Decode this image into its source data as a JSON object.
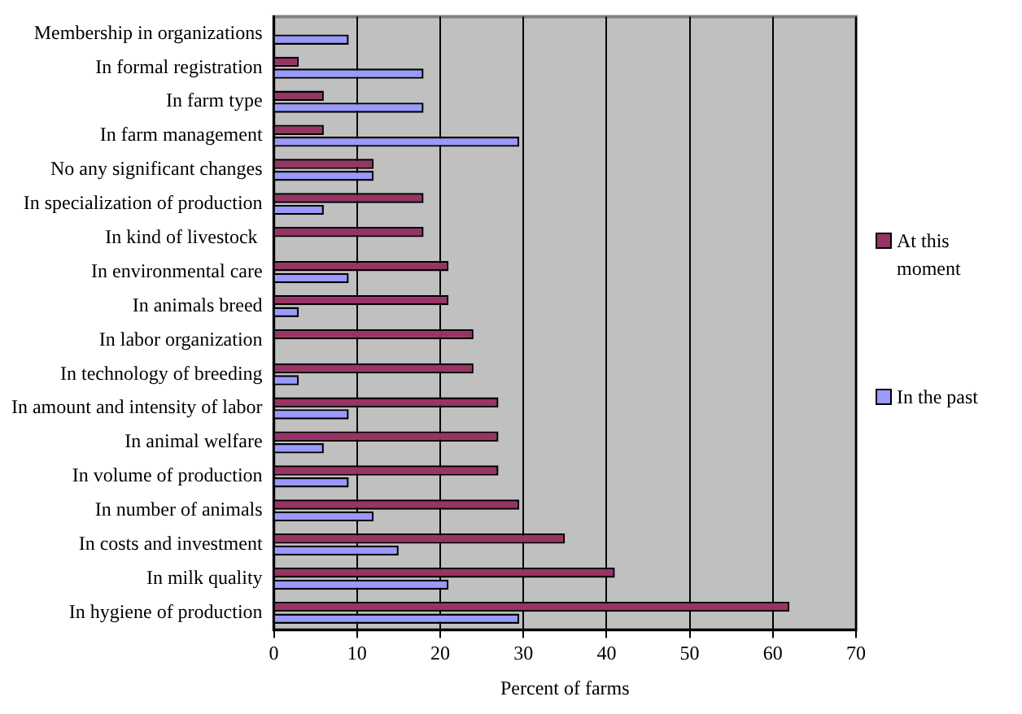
{
  "chart_data": {
    "type": "bar",
    "orientation": "horizontal",
    "xlabel": "Percent of farms",
    "categories": [
      "Membership in organizations",
      "In formal registration",
      "In farm type",
      "In farm management",
      "No any significant changes",
      "In specialization of production",
      "In kind of livestock ",
      "In environmental care",
      "In animals breed",
      "In labor organization",
      "In technology of breeding",
      "In amount and intensity of labor",
      "In animal welfare",
      "In volume of production",
      "In number of animals",
      "In costs and investment",
      "In milk quality",
      "In hygiene of production"
    ],
    "series": [
      {
        "name": "At this moment",
        "color": "#993366",
        "values": [
          0,
          3,
          6,
          6,
          12,
          18,
          18,
          21,
          21,
          24,
          24,
          27,
          27,
          27,
          29.5,
          35,
          41,
          62
        ]
      },
      {
        "name": "In the past",
        "color": "#9999ff",
        "values": [
          9,
          18,
          18,
          29.5,
          12,
          6,
          0,
          9,
          3,
          0,
          3,
          9,
          6,
          9,
          12,
          15,
          21,
          29.5
        ]
      }
    ],
    "xlim": [
      0,
      70
    ],
    "xticks": [
      0,
      10,
      20,
      30,
      40,
      50,
      60,
      70
    ],
    "grid": "x",
    "legend": "right"
  }
}
